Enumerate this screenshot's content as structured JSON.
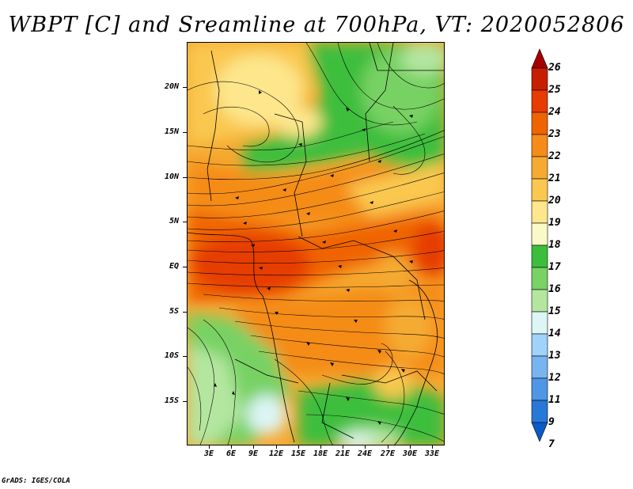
{
  "title": "WBPT [C] and Sreamline at 700hPa, VT: 2020052806",
  "credit": "GrADS: IGES/COLA",
  "map": {
    "lat_labels": [
      "20N",
      "15N",
      "10N",
      "5N",
      "EQ",
      "5S",
      "10S",
      "15S"
    ],
    "lon_labels": [
      "3E",
      "6E",
      "9E",
      "12E",
      "15E",
      "18E",
      "21E",
      "24E",
      "27E",
      "30E",
      "33E"
    ]
  },
  "colorbar": {
    "labels": [
      "26",
      "25",
      "24",
      "23",
      "22",
      "21",
      "20",
      "19",
      "18",
      "17",
      "16",
      "15",
      "14",
      "13",
      "12",
      "11",
      "9",
      "7"
    ],
    "colors": [
      "#a50000",
      "#c81e00",
      "#e63c00",
      "#f06400",
      "#f58c19",
      "#f5aa32",
      "#fac850",
      "#fde68c",
      "#fafac8",
      "#3cbe3c",
      "#78d264",
      "#b4e6a0",
      "#dcf5f5",
      "#a0d2fa",
      "#78b4f0",
      "#5096e6",
      "#2878d7",
      "#0a5ac8"
    ]
  }
}
